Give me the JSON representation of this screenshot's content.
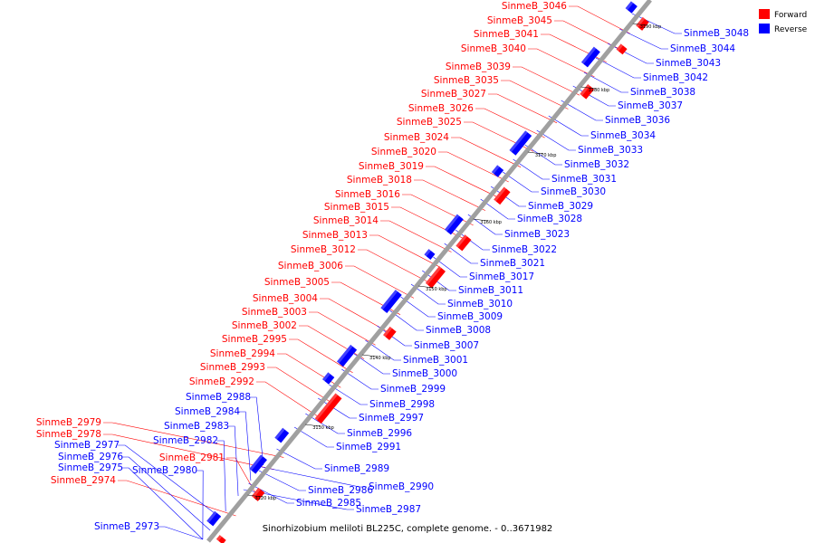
{
  "caption": "Sinorhizobium meliloti BL225C, complete genome. - 0..3671982",
  "legend": [
    {
      "label": "Forward",
      "color": "#ff0000"
    },
    {
      "label": "Reverse",
      "color": "#0000ff"
    }
  ],
  "colors": {
    "forward": "#ff0000",
    "reverse": "#0000ff",
    "axis": "#999999"
  },
  "ticks": [
    "3120 kbp",
    "3130 kbp",
    "3140 kbp",
    "3150 kbp",
    "3160 kbp",
    "3170 kbp",
    "3180 kbp",
    "3190 kbp"
  ],
  "forward_labels": [
    "SinmeB_3046",
    "SinmeB_3045",
    "SinmeB_3041",
    "SinmeB_3040",
    "SinmeB_3039",
    "SinmeB_3035",
    "SinmeB_3027",
    "SinmeB_3026",
    "SinmeB_3025",
    "SinmeB_3024",
    "SinmeB_3020",
    "SinmeB_3019",
    "SinmeB_3018",
    "SinmeB_3016",
    "SinmeB_3015",
    "SinmeB_3014",
    "SinmeB_3013",
    "SinmeB_3012",
    "SinmeB_3006",
    "SinmeB_3005",
    "SinmeB_3004",
    "SinmeB_3003",
    "SinmeB_3002",
    "SinmeB_2995",
    "SinmeB_2994",
    "SinmeB_2993",
    "SinmeB_2992",
    "SinmeB_2981",
    "SinmeB_2979",
    "SinmeB_2978",
    "SinmeB_2974"
  ],
  "reverse_labels": [
    "SinmeB_3048",
    "SinmeB_3044",
    "SinmeB_3043",
    "SinmeB_3042",
    "SinmeB_3038",
    "SinmeB_3037",
    "SinmeB_3036",
    "SinmeB_3034",
    "SinmeB_3033",
    "SinmeB_3032",
    "SinmeB_3031",
    "SinmeB_3030",
    "SinmeB_3029",
    "SinmeB_3028",
    "SinmeB_3023",
    "SinmeB_3022",
    "SinmeB_3021",
    "SinmeB_3017",
    "SinmeB_3011",
    "SinmeB_3010",
    "SinmeB_3009",
    "SinmeB_3008",
    "SinmeB_3007",
    "SinmeB_3001",
    "SinmeB_3000",
    "SinmeB_2999",
    "SinmeB_2998",
    "SinmeB_2997",
    "SinmeB_2996",
    "SinmeB_2991",
    "SinmeB_2989",
    "SinmeB_2990",
    "SinmeB_2986",
    "SinmeB_2985",
    "SinmeB_2987",
    "SinmeB_2988",
    "SinmeB_2984",
    "SinmeB_2983",
    "SinmeB_2982",
    "SinmeB_2980",
    "SinmeB_2977",
    "SinmeB_2976",
    "SinmeB_2975",
    "SinmeB_2973"
  ]
}
